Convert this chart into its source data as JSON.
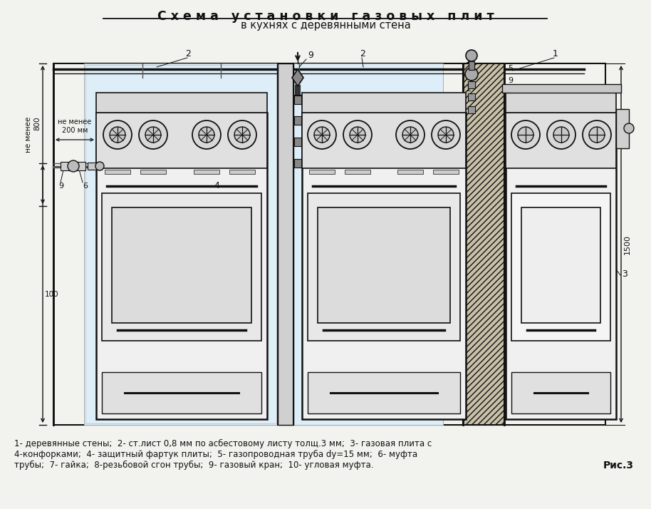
{
  "title_line1": "С х е м а   у с т а н о в к и   г а з о в ы х   п л и т",
  "title_line2": "в кухнях с деревянными стена",
  "caption_line1": "1- деревянные стены;  2- ст.лист 0,8 мм по асбестовому листу толщ.3 мм;  3- газовая плита с",
  "caption_line2": "4-конфорками;  4- защитный фартук плиты;  5- газопроводная труба dy=15 мм;  6- муфта",
  "caption_line3": "трубы;  7- гайка;  8-резьбовой сгон трубы;  9- газовый кран;  10- угловая муфта.",
  "fig_label": "Рис.3",
  "bg_color": "#f2f2ee",
  "shield_color": "#ddeef8",
  "line_color": "#111111",
  "wall_hatch_color": "#c8c0a8",
  "stove_fc": "#e8e8e8",
  "stove_top_fc": "#d0d0d0"
}
